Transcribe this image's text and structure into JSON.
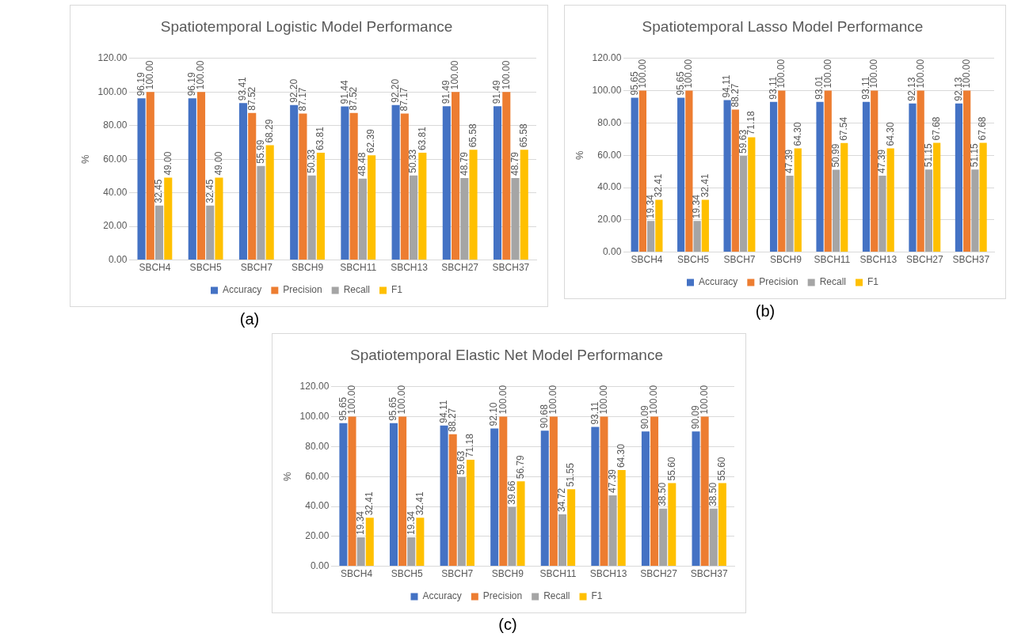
{
  "chart_data": [
    {
      "type": "bar",
      "title": "Spatiotemporal Logistic Model Performance",
      "ylabel": "%",
      "categories": [
        "SBCH4",
        "SBCH5",
        "SBCH7",
        "SBCH9",
        "SBCH11",
        "SBCH13",
        "SBCH27",
        "SBCH37"
      ],
      "series": [
        {
          "name": "Accuracy",
          "color": "#4472c4",
          "values": [
            96.19,
            96.19,
            93.41,
            92.2,
            91.44,
            92.2,
            91.49,
            91.49
          ],
          "value_labels": [
            "96.19",
            "96.19",
            "93.41",
            "92.20",
            "91.44",
            "92.20",
            "91.49",
            "91.49"
          ]
        },
        {
          "name": "Precision",
          "color": "#ed7d31",
          "values": [
            100,
            100,
            87.52,
            87.17,
            87.52,
            87.17,
            100,
            100
          ],
          "value_labels": [
            "100.00",
            "100.00",
            "87.52",
            "87.17",
            "87.52",
            "87.17",
            "100.00",
            "100.00"
          ]
        },
        {
          "name": "Recall",
          "color": "#a5a5a5",
          "values": [
            32.45,
            32.45,
            55.99,
            50.33,
            48.48,
            50.33,
            48.79,
            48.79
          ],
          "value_labels": [
            "32.45",
            "32.45",
            "55.99",
            "50.33",
            "48.48",
            "50.33",
            "48.79",
            "48.79"
          ]
        },
        {
          "name": "F1",
          "color": "#ffc000",
          "values": [
            49.0,
            49.0,
            68.29,
            63.81,
            62.39,
            63.81,
            65.58,
            65.58
          ],
          "value_labels": [
            "49.00",
            "49.00",
            "68.29",
            "63.81",
            "62.39",
            "63.81",
            "65.58",
            "65.58"
          ]
        }
      ],
      "ylim": [
        0,
        120
      ],
      "yticks": [
        {
          "value": 0,
          "label": "0.00"
        },
        {
          "value": 20,
          "label": "20.00"
        },
        {
          "value": 40,
          "label": "40.00"
        },
        {
          "value": 60,
          "label": "60.00"
        },
        {
          "value": 80,
          "label": "80.00"
        },
        {
          "value": 100,
          "label": "100.00"
        },
        {
          "value": 120,
          "label": "120.00"
        }
      ],
      "grid": "y",
      "legend": "bottom",
      "annotations": [
        "(a)"
      ]
    },
    {
      "type": "bar",
      "title": "Spatiotemporal Lasso Model Performance",
      "ylabel": "%",
      "categories": [
        "SBCH4",
        "SBCH5",
        "SBCH7",
        "SBCH9",
        "SBCH11",
        "SBCH13",
        "SBCH27",
        "SBCH37"
      ],
      "series": [
        {
          "name": "Accuracy",
          "color": "#4472c4",
          "values": [
            95.65,
            95.65,
            94.11,
            93.11,
            93.01,
            93.11,
            92.13,
            92.13
          ],
          "value_labels": [
            "95.65",
            "95.65",
            "94.11",
            "93.11",
            "93.01",
            "93.11",
            "92.13",
            "92.13"
          ]
        },
        {
          "name": "Precision",
          "color": "#ed7d31",
          "values": [
            100,
            100,
            88.27,
            100,
            100,
            100,
            100,
            100
          ],
          "value_labels": [
            "100.00",
            "100.00",
            "88.27",
            "100.00",
            "100.00",
            "100.00",
            "100.00",
            "100.00"
          ]
        },
        {
          "name": "Recall",
          "color": "#a5a5a5",
          "values": [
            19.34,
            19.34,
            59.63,
            47.39,
            50.99,
            47.39,
            51.15,
            51.15
          ],
          "value_labels": [
            "19.34",
            "19.34",
            "59.63",
            "47.39",
            "50.99",
            "47.39",
            "51.15",
            "51.15"
          ]
        },
        {
          "name": "F1",
          "color": "#ffc000",
          "values": [
            32.41,
            32.41,
            71.18,
            64.3,
            67.54,
            64.3,
            67.68,
            67.68
          ],
          "value_labels": [
            "32.41",
            "32.41",
            "71.18",
            "64.30",
            "67.54",
            "64.30",
            "67.68",
            "67.68"
          ]
        }
      ],
      "ylim": [
        0,
        120
      ],
      "yticks": [
        {
          "value": 0,
          "label": "0.00"
        },
        {
          "value": 20,
          "label": "20.00"
        },
        {
          "value": 40,
          "label": "40.00"
        },
        {
          "value": 60,
          "label": "60.00"
        },
        {
          "value": 80,
          "label": "80.00"
        },
        {
          "value": 100,
          "label": "100.00"
        },
        {
          "value": 120,
          "label": "120.00"
        }
      ],
      "grid": "y",
      "legend": "bottom",
      "annotations": [
        "(b)"
      ]
    },
    {
      "type": "bar",
      "title": "Spatiotemporal Elastic Net Model Performance",
      "ylabel": "%",
      "categories": [
        "SBCH4",
        "SBCH5",
        "SBCH7",
        "SBCH9",
        "SBCH11",
        "SBCH13",
        "SBCH27",
        "SBCH37"
      ],
      "series": [
        {
          "name": "Accuracy",
          "color": "#4472c4",
          "values": [
            95.65,
            95.65,
            94.11,
            92.1,
            90.68,
            93.11,
            90.09,
            90.09
          ],
          "value_labels": [
            "95.65",
            "95.65",
            "94.11",
            "92.10",
            "90.68",
            "93.11",
            "90.09",
            "90.09"
          ]
        },
        {
          "name": "Precision",
          "color": "#ed7d31",
          "values": [
            100,
            100,
            88.27,
            100,
            100,
            100,
            100,
            100
          ],
          "value_labels": [
            "100.00",
            "100.00",
            "88.27",
            "100.00",
            "100.00",
            "100.00",
            "100.00",
            "100.00"
          ]
        },
        {
          "name": "Recall",
          "color": "#a5a5a5",
          "values": [
            19.34,
            19.34,
            59.63,
            39.66,
            34.72,
            47.39,
            38.5,
            38.5
          ],
          "value_labels": [
            "19.34",
            "19.34",
            "59.63",
            "39.66",
            "34.72",
            "47.39",
            "38.50",
            "38.50"
          ]
        },
        {
          "name": "F1",
          "color": "#ffc000",
          "values": [
            32.41,
            32.41,
            71.18,
            56.79,
            51.55,
            64.3,
            55.6,
            55.6
          ],
          "value_labels": [
            "32.41",
            "32.41",
            "71.18",
            "56.79",
            "51.55",
            "64.30",
            "55.60",
            "55.60"
          ]
        }
      ],
      "ylim": [
        0,
        120
      ],
      "yticks": [
        {
          "value": 0,
          "label": "0.00"
        },
        {
          "value": 20,
          "label": "20.00"
        },
        {
          "value": 40,
          "label": "40.00"
        },
        {
          "value": 60,
          "label": "60.00"
        },
        {
          "value": 80,
          "label": "80.00"
        },
        {
          "value": 100,
          "label": "100.00"
        },
        {
          "value": 120,
          "label": "120.00"
        }
      ],
      "grid": "y",
      "legend": "bottom",
      "annotations": [
        "(c)"
      ]
    }
  ]
}
